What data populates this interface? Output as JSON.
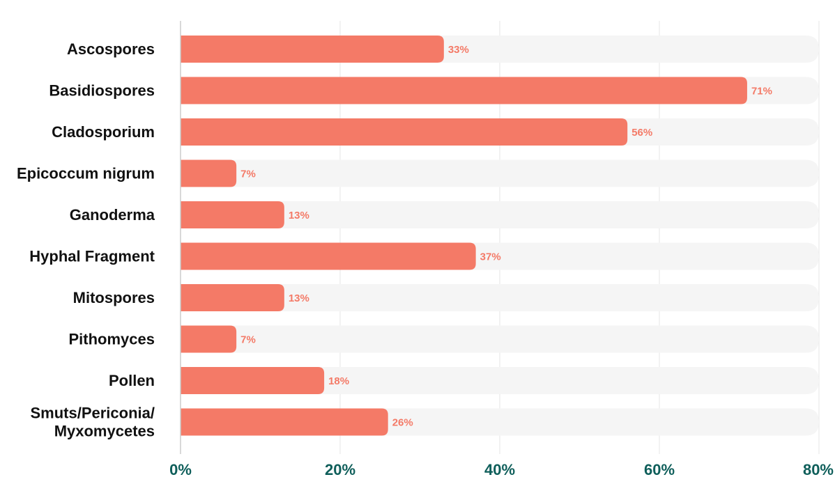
{
  "chart_data": {
    "type": "bar",
    "orientation": "horizontal",
    "title": "",
    "xlabel": "",
    "ylabel": "",
    "categories": [
      [
        "Ascospores"
      ],
      [
        "Basidiospores"
      ],
      [
        "Cladosporium"
      ],
      [
        "Epicoccum nigrum"
      ],
      [
        "Ganoderma"
      ],
      [
        "Hyphal Fragment"
      ],
      [
        "Mitospores"
      ],
      [
        "Pithomyces"
      ],
      [
        "Pollen"
      ],
      [
        "Smuts/Periconia/",
        "Myxomycetes"
      ]
    ],
    "values": [
      33,
      71,
      56,
      7,
      13,
      37,
      13,
      7,
      18,
      26
    ],
    "data_labels": [
      "33%",
      "71%",
      "56%",
      "7%",
      "13%",
      "37%",
      "13%",
      "7%",
      "18%",
      "26%"
    ],
    "xlim": [
      0,
      80
    ],
    "xticks": [
      0,
      20,
      40,
      60,
      80
    ],
    "xtick_labels": [
      "0%",
      "20%",
      "40%",
      "60%",
      "80%"
    ],
    "grid": true,
    "colors": {
      "bar": "#f47a67",
      "track": "#f5f5f5",
      "grid": "#e6e6e6",
      "axis": "#cccccc",
      "tick_text": "#0e5e5a",
      "data_label": "#f47a67",
      "category_text": "#111111"
    }
  }
}
